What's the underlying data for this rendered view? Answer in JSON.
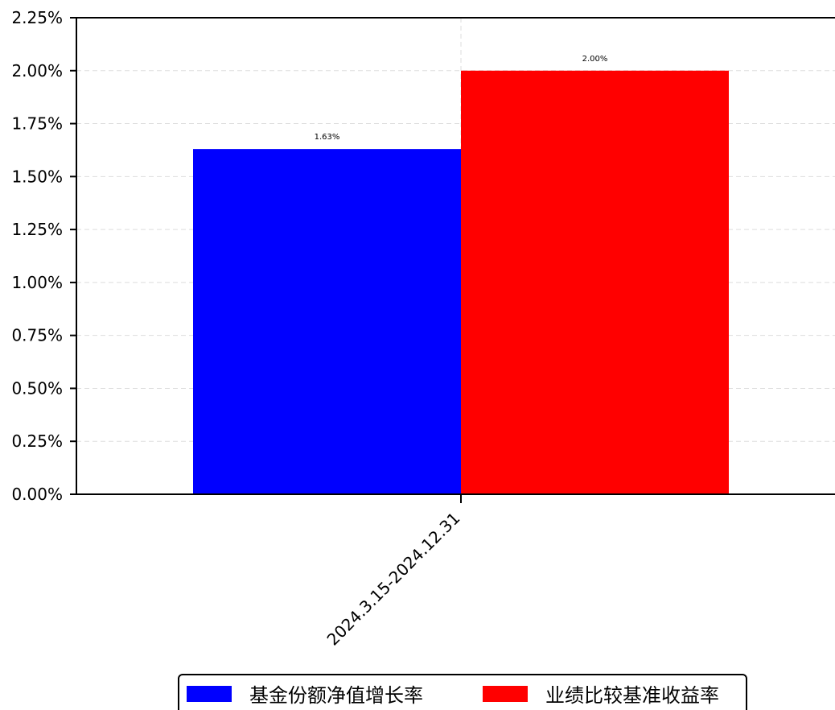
{
  "chart_data": {
    "type": "bar",
    "categories": [
      "2024.3.15-2024.12.31"
    ],
    "series": [
      {
        "name": "基金份额净值增长率",
        "values": [
          1.63
        ],
        "color": "#0000ff"
      },
      {
        "name": "业绩比较基准收益率",
        "values": [
          2.0
        ],
        "color": "#ff0000"
      }
    ],
    "data_labels": [
      "1.63%",
      "2.00%"
    ],
    "y_ticks": [
      "0.00%",
      "0.25%",
      "0.50%",
      "0.75%",
      "1.00%",
      "1.25%",
      "1.50%",
      "1.75%",
      "2.00%",
      "2.25%"
    ],
    "x_tick_label": "2024.3.15-2024.12.31",
    "ylim": [
      0,
      2.25
    ],
    "grid": true,
    "legend_position": "bottom"
  }
}
